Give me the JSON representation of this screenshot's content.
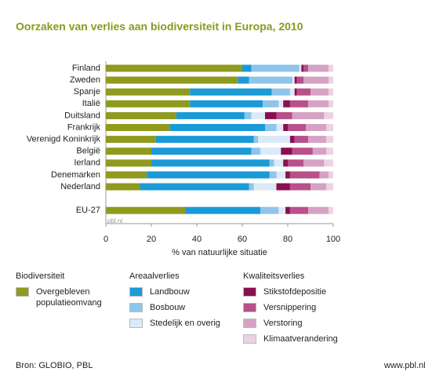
{
  "chart_data": {
    "type": "stacked_bar_horizontal",
    "title": "Oorzaken van verlies aan biodiversiteit in Europa, 2010",
    "xlabel": "% van natuurlijke situatie",
    "categories": [
      "Finland",
      "Zweden",
      "Spanje",
      "Italië",
      "Duitsland",
      "Frankrijk",
      "Verenigd Koninkrijk",
      "België",
      "Ierland",
      "Denemarken",
      "Nederland",
      null,
      "EU-27"
    ],
    "series": [
      {
        "name": "Overgebleven populatieomvang",
        "group": "Biodiversiteit",
        "color": "#8f9a1e",
        "values": [
          60,
          58,
          37,
          37,
          31,
          28,
          22,
          20,
          20,
          18,
          15,
          null,
          35
        ]
      },
      {
        "name": "Landbouw",
        "group": "Areaalverlies",
        "color": "#1a9ad6",
        "values": [
          4,
          5,
          36,
          32,
          30,
          42,
          43,
          44,
          52,
          54,
          48,
          null,
          33
        ]
      },
      {
        "name": "Bosbouw",
        "color": "#8ec5ea",
        "values": [
          21,
          19,
          8,
          7,
          3,
          5,
          2,
          4,
          2,
          3,
          2,
          null,
          8
        ]
      },
      {
        "name": "Stedelijk en overig",
        "color": "#dbeaf6",
        "values": [
          1,
          1,
          2,
          2,
          6,
          3,
          14,
          9,
          4,
          4,
          10,
          null,
          3
        ]
      },
      {
        "name": "Stikstofdepositie",
        "group": "Kwaliteitsverlies",
        "color": "#8a0f4f",
        "values": [
          1,
          1,
          1,
          3,
          5,
          2,
          2,
          5,
          2,
          2,
          6,
          null,
          2
        ]
      },
      {
        "name": "Versnippering",
        "color": "#b8508a",
        "values": [
          2,
          3,
          6,
          8,
          7,
          8,
          6,
          9,
          7,
          13,
          9,
          null,
          8
        ]
      },
      {
        "name": "Verstoring",
        "color": "#d6a2c3",
        "values": [
          9,
          11,
          8,
          9,
          14,
          9,
          8,
          6,
          9,
          4,
          7,
          null,
          9
        ]
      },
      {
        "name": "Klimaatverandering",
        "color": "#ecd3e2",
        "values": [
          2,
          2,
          2,
          2,
          4,
          3,
          3,
          3,
          4,
          2,
          3,
          null,
          2
        ]
      }
    ],
    "xlim": [
      0,
      100
    ],
    "xticks": [
      0,
      20,
      40,
      60,
      80,
      100
    ],
    "watermark": "pbl.nl",
    "source": "Bron: GLOBIO, PBL",
    "url": "www.pbl.nl"
  }
}
